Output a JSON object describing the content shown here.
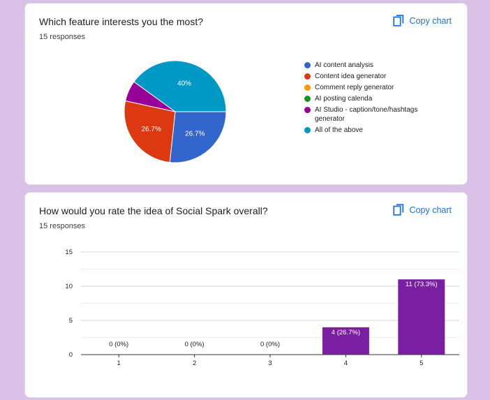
{
  "cards": [
    {
      "title": "Which feature interests you the most?",
      "responses": "15 responses",
      "copy_label": "Copy chart"
    },
    {
      "title": "How would you rate the idea of Social Spark overall?",
      "responses": "15 responses",
      "copy_label": "Copy chart"
    }
  ],
  "colors": {
    "copy": "#1a73e8",
    "bar": "#7b1fa2"
  },
  "chart_data": [
    {
      "type": "pie",
      "legend_position": "right",
      "slices": [
        {
          "label": "AI content analysis",
          "value": 26.7,
          "display": "26.7%",
          "color": "#3366cc"
        },
        {
          "label": "Content idea generator",
          "value": 26.7,
          "display": "26.7%",
          "color": "#dc3912"
        },
        {
          "label": "Comment reply generator",
          "value": 0,
          "display": "",
          "color": "#ff9900"
        },
        {
          "label": "AI posting calenda",
          "value": 0,
          "display": "",
          "color": "#109618"
        },
        {
          "label": "AI Studio - caption/tone/hashtags generator",
          "value": 6.6,
          "display": "",
          "color": "#990099"
        },
        {
          "label": "All of the above",
          "value": 40,
          "display": "40%",
          "color": "#0099c6"
        }
      ]
    },
    {
      "type": "bar",
      "categories": [
        "1",
        "2",
        "3",
        "4",
        "5"
      ],
      "values": [
        0,
        0,
        0,
        4,
        11
      ],
      "labels": [
        "0 (0%)",
        "0 (0%)",
        "0 (0%)",
        "4 (26.7%)",
        "11 (73.3%)"
      ],
      "ylim": [
        0,
        15
      ],
      "yticks": [
        0,
        5,
        10,
        15
      ],
      "grid": true
    }
  ]
}
